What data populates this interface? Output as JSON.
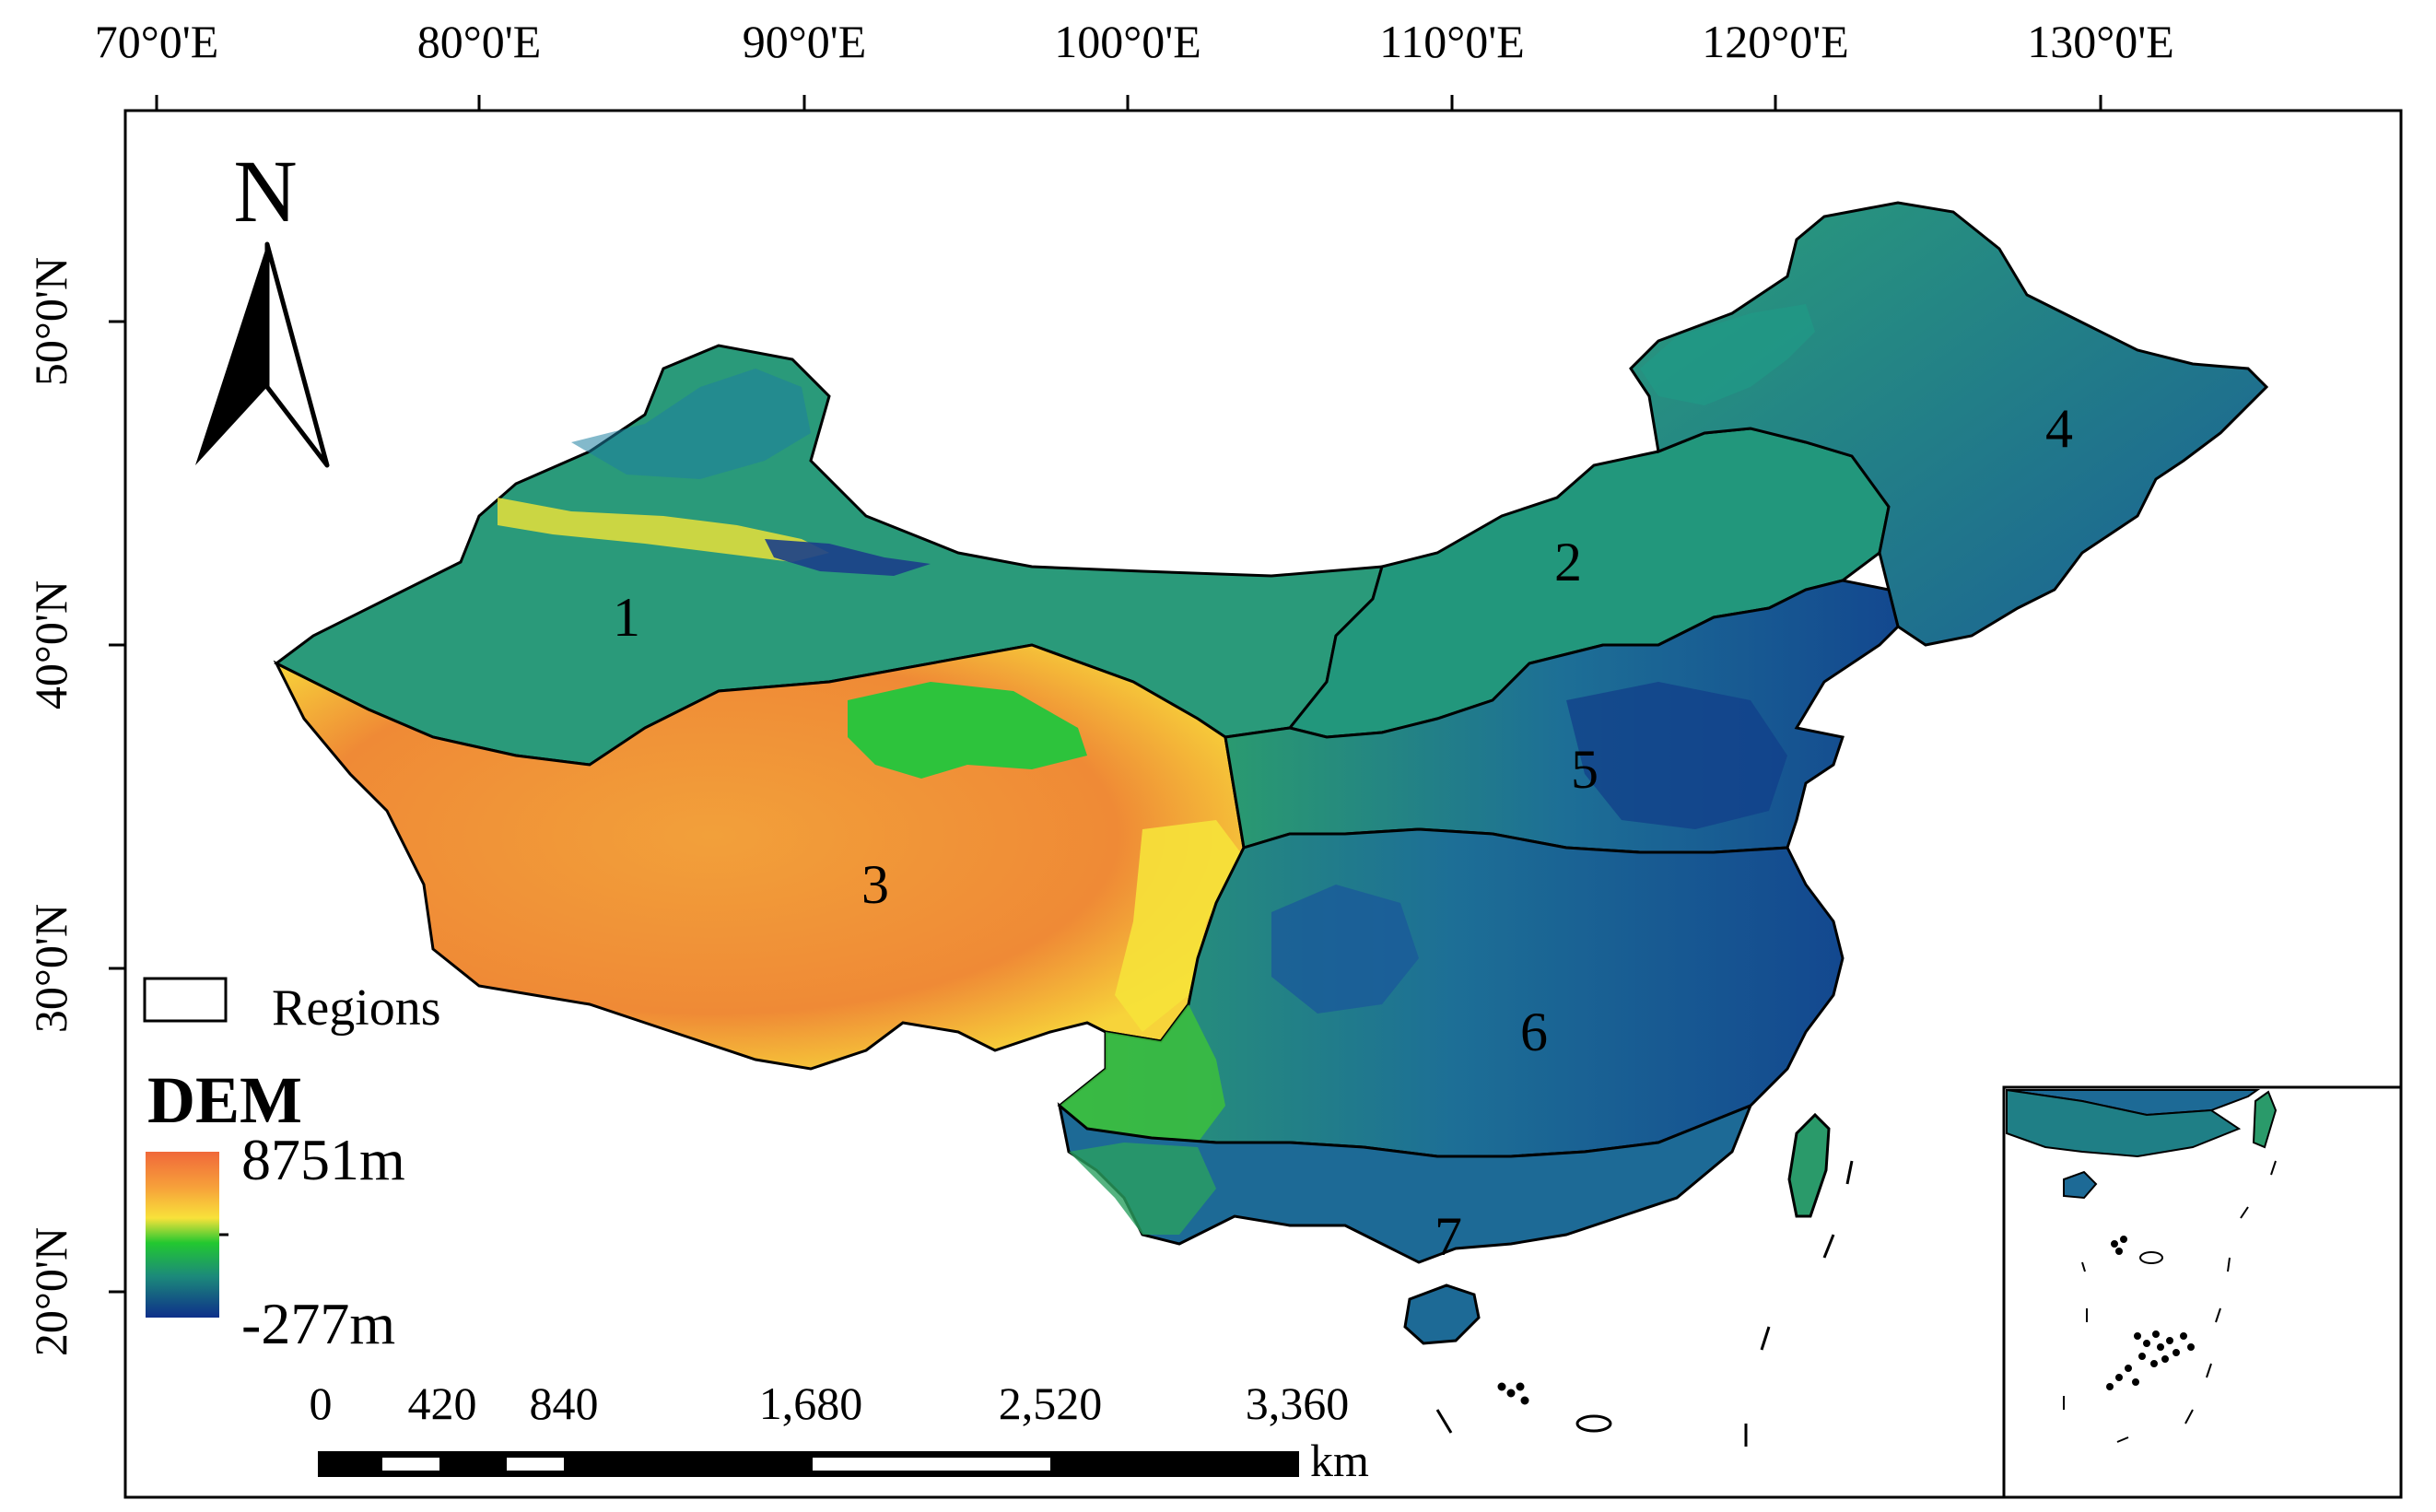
{
  "map": {
    "longitude_ticks": [
      "70°0'E",
      "80°0'E",
      "90°0'E",
      "100°0'E",
      "110°0'E",
      "120°0'E",
      "130°0'E"
    ],
    "latitude_ticks": [
      "50°0'N",
      "40°0'N",
      "30°0'N",
      "20°0'N"
    ],
    "north_arrow_label": "N",
    "region_labels": [
      "1",
      "2",
      "3",
      "4",
      "5",
      "6",
      "7"
    ],
    "legend": {
      "regions_label": "Regions",
      "dem_title": "DEM",
      "dem_max": "8751m",
      "dem_min": "-277m",
      "ramp_colors": [
        "#f0683a",
        "#f7a23a",
        "#f8e23a",
        "#22c830",
        "#1c8a7a",
        "#0e2f8a"
      ]
    },
    "scale_bar": {
      "ticks": [
        "0",
        "420",
        "840",
        "1,680",
        "2,520",
        "3,360"
      ],
      "unit": "km"
    },
    "colors": {
      "high_plateau": "#f29a38",
      "mid_green": "#2fbf3a",
      "teal": "#1f8a86",
      "low_blue": "#13488f",
      "boundary": "#000000"
    }
  }
}
